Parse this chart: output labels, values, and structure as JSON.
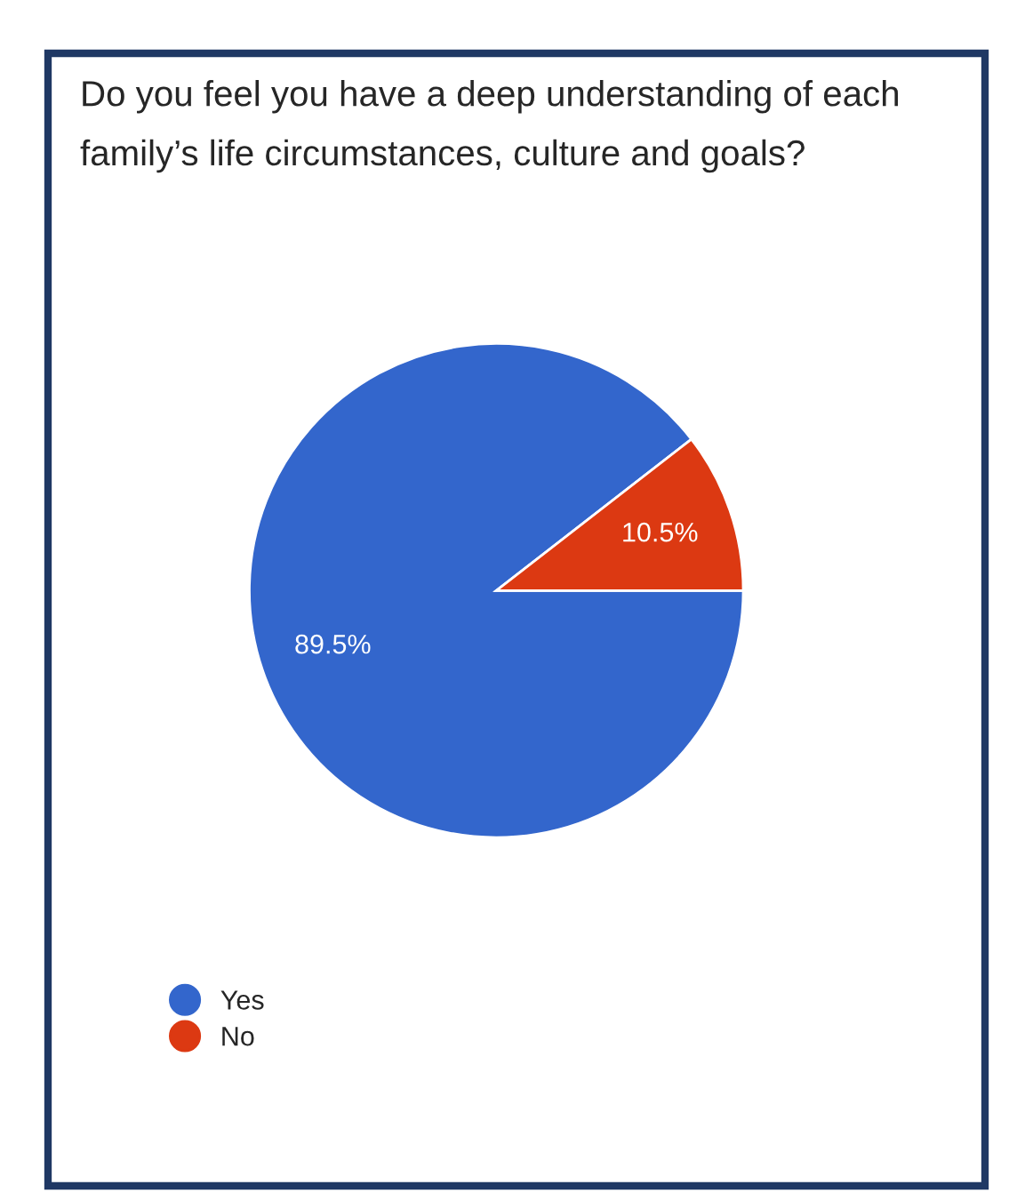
{
  "chart_data": {
    "type": "pie",
    "title": "Do you feel you have a deep understanding of each family’s life circumstances, culture and goals?",
    "categories": [
      "Yes",
      "No"
    ],
    "values": [
      89.5,
      10.5
    ],
    "colors": [
      "#3366cc",
      "#dc3912"
    ],
    "value_labels": [
      "89.5%",
      "10.5%"
    ],
    "legend": "bottom left"
  }
}
